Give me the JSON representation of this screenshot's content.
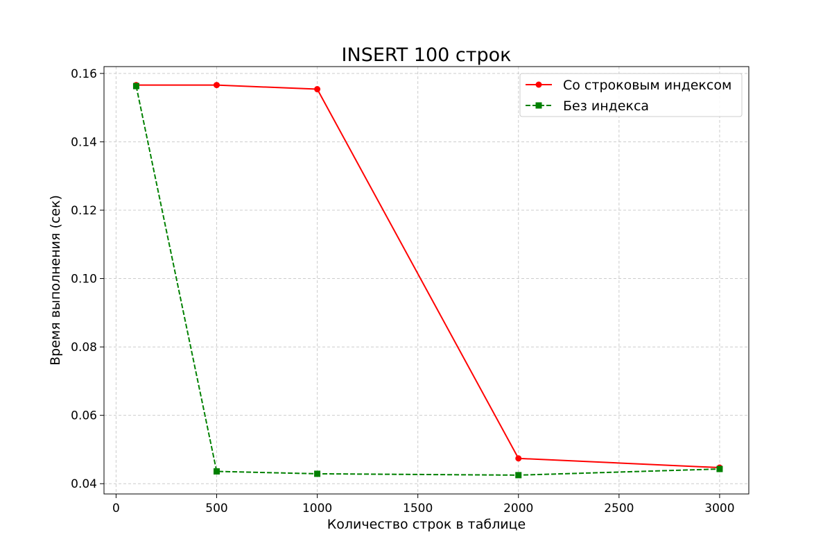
{
  "chart_data": {
    "type": "line",
    "title": "INSERT 100 строк",
    "xlabel": "Количество строк в таблице",
    "ylabel": "Время выполнения (сек)",
    "xlim": [
      -60,
      3145
    ],
    "ylim": [
      0.037,
      0.162
    ],
    "xticks": [
      0,
      500,
      1000,
      1500,
      2000,
      2500,
      3000
    ],
    "yticks": [
      0.04,
      0.06,
      0.08,
      0.1,
      0.12,
      0.14,
      0.16
    ],
    "ytick_labels": [
      "0.04",
      "0.06",
      "0.08",
      "0.10",
      "0.12",
      "0.14",
      "0.16"
    ],
    "grid": true,
    "legend_position": "top-right",
    "series": [
      {
        "name": "Со строковым индексом",
        "color": "#ff0000",
        "line_style": "solid",
        "marker": "circle",
        "x": [
          100,
          500,
          1000,
          2000,
          3000
        ],
        "y": [
          0.1566,
          0.1566,
          0.1554,
          0.0474,
          0.0447
        ]
      },
      {
        "name": "Без индекса",
        "color": "#008000",
        "line_style": "dashed",
        "marker": "square",
        "x": [
          100,
          500,
          1000,
          2000,
          3000
        ],
        "y": [
          0.1563,
          0.0436,
          0.0429,
          0.0425,
          0.0443
        ]
      }
    ]
  }
}
